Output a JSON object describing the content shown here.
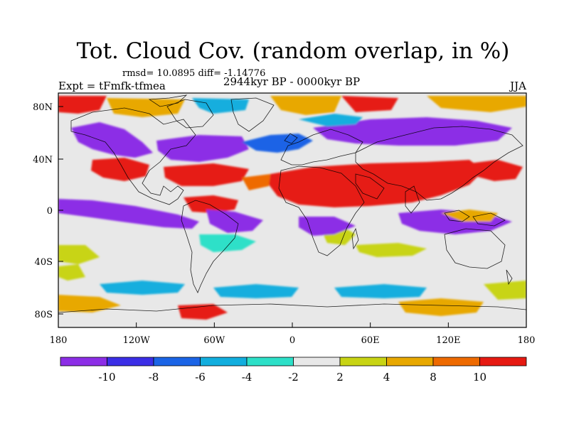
{
  "title": "Tot. Cloud Cov. (random overlap, in %)",
  "stats_line": "rmsd= 10.0895 diff= -1.14776",
  "experiment": "Expt = tFmfk-tfmea",
  "period": "2944kyr BP - 0000kyr BP",
  "season": "JJA",
  "axes": {
    "x_ticks": [
      "180",
      "120W",
      "60W",
      "0",
      "60E",
      "120E",
      "180"
    ],
    "y_ticks": [
      "80N",
      "40N",
      "0",
      "40S",
      "80S"
    ]
  },
  "colorbar": {
    "colors": [
      "#8c2ee6",
      "#3b2ee6",
      "#1b64e6",
      "#12aede",
      "#2de0c8",
      "#e8e8e8",
      "#c8d414",
      "#e8a800",
      "#ee6a00",
      "#e61a12"
    ],
    "labels": [
      "-10",
      "-8",
      "-6",
      "-4",
      "-2",
      "2",
      "4",
      "8",
      "10"
    ]
  },
  "map_palette": {
    "background": "#e8e8e8",
    "strong_negative": "#8c2ee6",
    "negative": "#3b2ee6",
    "moderate_negative": "#1b64e6",
    "weak_negative": "#12aede",
    "slight_negative": "#2de0c8",
    "slight_positive": "#c8d414",
    "positive": "#e8a800",
    "moderate_positive": "#ee6a00",
    "strong_positive": "#e61a12"
  }
}
